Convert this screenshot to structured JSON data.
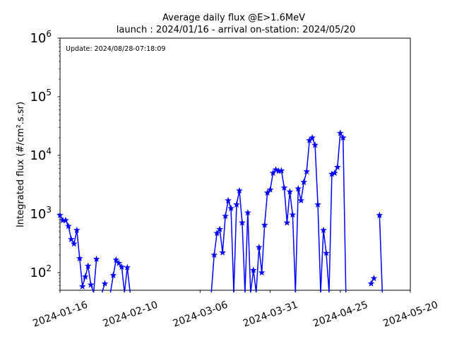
{
  "chart_data": {
    "type": "line",
    "title": "Average daily flux @E>1.6MeV",
    "subtitle": "launch : 2024/01/16 - arrival on-station: 2024/05/20",
    "ylabel": "Integrated flux (#/cm².s.sr)",
    "annotation": "Update: 2024/08/28-07:18:09",
    "xlabel": "",
    "xlim": [
      "2024-01-16",
      "2024-05-20"
    ],
    "ylim": [
      50,
      1000000
    ],
    "yscale": "log",
    "yticks": [
      {
        "base": "10",
        "exp": "2"
      },
      {
        "base": "10",
        "exp": "3"
      },
      {
        "base": "10",
        "exp": "4"
      },
      {
        "base": "10",
        "exp": "5"
      },
      {
        "base": "10",
        "exp": "6"
      }
    ],
    "xticks": [
      "2024-01-16",
      "2024-02-10",
      "2024-03-06",
      "2024-03-31",
      "2024-04-25",
      "2024-05-20"
    ],
    "grid": false,
    "color": "#0000ff",
    "marker": "star",
    "series": [
      {
        "x": [
          "2024-01-16",
          "2024-01-17",
          "2024-01-18",
          "2024-01-19",
          "2024-01-20",
          "2024-01-21",
          "2024-01-22",
          "2024-01-23",
          "2024-01-24",
          "2024-01-25",
          "2024-01-26",
          "2024-01-27",
          "2024-01-28",
          "2024-01-29",
          "2024-01-31",
          "2024-02-01",
          "2024-02-03",
          "2024-02-04",
          "2024-02-05",
          "2024-02-06",
          "2024-02-07",
          "2024-02-08",
          "2024-02-09",
          "2024-02-10",
          "2024-03-09",
          "2024-03-10",
          "2024-03-11",
          "2024-03-12",
          "2024-03-13",
          "2024-03-14",
          "2024-03-15",
          "2024-03-16",
          "2024-03-17",
          "2024-03-18",
          "2024-03-19",
          "2024-03-20",
          "2024-03-21",
          "2024-03-22",
          "2024-03-23",
          "2024-03-24",
          "2024-03-25",
          "2024-03-26",
          "2024-03-27",
          "2024-03-28",
          "2024-03-29",
          "2024-03-30",
          "2024-03-31",
          "2024-04-01",
          "2024-04-02",
          "2024-04-03",
          "2024-04-04",
          "2024-04-05",
          "2024-04-06",
          "2024-04-07",
          "2024-04-08",
          "2024-04-09",
          "2024-04-10",
          "2024-04-11",
          "2024-04-12",
          "2024-04-13",
          "2024-04-14",
          "2024-04-15",
          "2024-04-16",
          "2024-04-17",
          "2024-04-18",
          "2024-04-19",
          "2024-04-20",
          "2024-04-21",
          "2024-04-22",
          "2024-04-23",
          "2024-04-24",
          "2024-04-25",
          "2024-04-26",
          "2024-04-27",
          "2024-05-06",
          "2024-05-07",
          "2024-05-09",
          "2024-05-10",
          "2024-05-11",
          "2024-05-12"
        ],
        "y": [
          950,
          780,
          780,
          620,
          370,
          310,
          530,
          175,
          58,
          85,
          130,
          62,
          null,
          170,
          null,
          65,
          null,
          90,
          165,
          145,
          125,
          null,
          122,
          null,
          null,
          null,
          200,
          470,
          550,
          220,
          920,
          1700,
          1250,
          null,
          1450,
          2500,
          710,
          null,
          1050,
          null,
          110,
          null,
          270,
          100,
          650,
          2300,
          2600,
          5000,
          5700,
          5400,
          5500,
          2800,
          710,
          2400,
          970,
          null,
          2700,
          1700,
          3500,
          5300,
          18000,
          20000,
          15000,
          1450,
          null,
          530,
          215,
          null,
          4800,
          5000,
          6300,
          24000,
          20000,
          null,
          65,
          80,
          950,
          null,
          null,
          null
        ]
      }
    ]
  }
}
